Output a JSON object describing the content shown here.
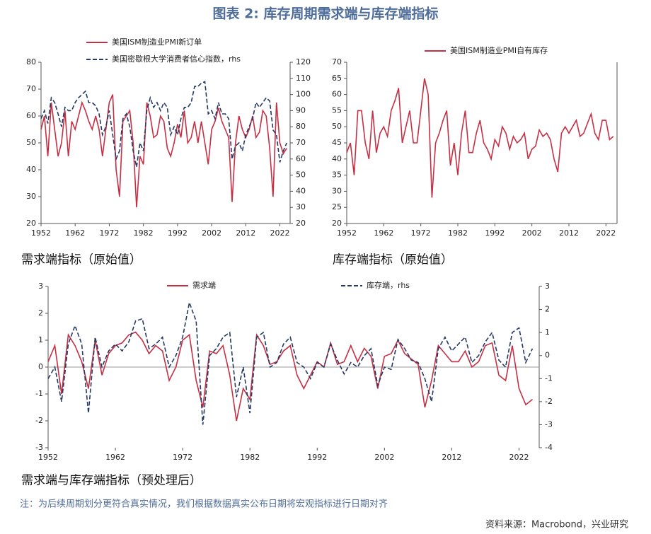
{
  "header": {
    "title": "图表 2:  库存周期需求端与库存端指标"
  },
  "chart_data": [
    {
      "type": "line",
      "title": "需求端指标（原始值）",
      "x": [
        1952,
        1953,
        1954,
        1955,
        1956,
        1957,
        1958,
        1959,
        1960,
        1961,
        1962,
        1963,
        1964,
        1965,
        1966,
        1967,
        1968,
        1969,
        1970,
        1971,
        1972,
        1973,
        1974,
        1975,
        1976,
        1977,
        1978,
        1979,
        1980,
        1981,
        1982,
        1983,
        1984,
        1985,
        1986,
        1987,
        1988,
        1989,
        1990,
        1991,
        1992,
        1993,
        1994,
        1995,
        1996,
        1997,
        1998,
        1999,
        2000,
        2001,
        2002,
        2003,
        2004,
        2005,
        2006,
        2007,
        2008,
        2009,
        2010,
        2011,
        2012,
        2013,
        2014,
        2015,
        2016,
        2017,
        2018,
        2019,
        2020,
        2021,
        2022,
        2023,
        2024
      ],
      "xlim": [
        1952,
        2025
      ],
      "xticks": [
        1952,
        1962,
        1972,
        1982,
        1992,
        2002,
        2012,
        2022
      ],
      "ylim": [
        20,
        80
      ],
      "yticks": [
        20,
        30,
        40,
        50,
        60,
        70,
        80
      ],
      "y2lim": [
        20,
        120
      ],
      "y2ticks": [
        20,
        30,
        40,
        50,
        60,
        70,
        80,
        90,
        100,
        110,
        120
      ],
      "legend": "upper left",
      "series": [
        {
          "name": "美国ISM制造业PMI新订单",
          "color": "#c62f44",
          "line_style": "solid",
          "values": [
            55,
            60,
            45,
            65,
            55,
            45,
            50,
            62,
            45,
            58,
            55,
            60,
            65,
            62,
            58,
            55,
            60,
            55,
            45,
            55,
            65,
            68,
            40,
            30,
            58,
            60,
            62,
            50,
            26,
            45,
            42,
            65,
            60,
            52,
            53,
            60,
            58,
            48,
            45,
            50,
            57,
            52,
            62,
            50,
            52,
            58,
            50,
            58,
            50,
            42,
            55,
            58,
            63,
            58,
            55,
            52,
            28,
            50,
            60,
            55,
            52,
            55,
            60,
            52,
            54,
            62,
            60,
            48,
            30,
            65,
            50,
            46,
            48
          ]
        },
        {
          "name": "美国密歇根大学消费者信心指数，rhs",
          "color": "#243a64",
          "line_style": "dashed",
          "axis": "y2",
          "values": [
            85,
            90,
            82,
            98,
            95,
            88,
            80,
            92,
            90,
            90,
            95,
            98,
            100,
            102,
            95,
            95,
            93,
            88,
            75,
            80,
            90,
            75,
            60,
            65,
            85,
            88,
            80,
            65,
            55,
            70,
            65,
            90,
            98,
            92,
            95,
            90,
            95,
            92,
            75,
            80,
            75,
            85,
            92,
            92,
            95,
            105,
            105,
            107,
            108,
            88,
            90,
            85,
            95,
            88,
            88,
            85,
            60,
            68,
            70,
            65,
            75,
            80,
            85,
            95,
            92,
            95,
            98,
            96,
            78,
            75,
            58,
            65,
            70
          ]
        }
      ]
    },
    {
      "type": "line",
      "title": "库存端指标（原始值）",
      "x": [
        1952,
        1953,
        1954,
        1955,
        1956,
        1957,
        1958,
        1959,
        1960,
        1961,
        1962,
        1963,
        1964,
        1965,
        1966,
        1967,
        1968,
        1969,
        1970,
        1971,
        1972,
        1973,
        1974,
        1975,
        1976,
        1977,
        1978,
        1979,
        1980,
        1981,
        1982,
        1983,
        1984,
        1985,
        1986,
        1987,
        1988,
        1989,
        1990,
        1991,
        1992,
        1993,
        1994,
        1995,
        1996,
        1997,
        1998,
        1999,
        2000,
        2001,
        2002,
        2003,
        2004,
        2005,
        2006,
        2007,
        2008,
        2009,
        2010,
        2011,
        2012,
        2013,
        2014,
        2015,
        2016,
        2017,
        2018,
        2019,
        2020,
        2021,
        2022,
        2023,
        2024
      ],
      "xlim": [
        1952,
        2025
      ],
      "xticks": [
        1952,
        1962,
        1972,
        1982,
        1992,
        2002,
        2012,
        2022
      ],
      "ylim": [
        20,
        70
      ],
      "yticks": [
        20,
        25,
        30,
        35,
        40,
        45,
        50,
        55,
        60,
        65,
        70
      ],
      "legend": "upper center",
      "series": [
        {
          "name": "美国ISM制造业PMI自有库存",
          "color": "#c62f44",
          "line_style": "solid",
          "values": [
            42,
            45,
            35,
            55,
            55,
            45,
            40,
            55,
            42,
            48,
            50,
            47,
            55,
            58,
            62,
            45,
            50,
            55,
            45,
            45,
            55,
            65,
            60,
            28,
            45,
            48,
            52,
            55,
            38,
            45,
            35,
            48,
            55,
            42,
            42,
            48,
            52,
            45,
            43,
            40,
            46,
            44,
            50,
            48,
            43,
            47,
            45,
            46,
            48,
            40,
            43,
            44,
            49,
            47,
            48,
            46,
            40,
            36,
            48,
            50,
            48,
            50,
            52,
            47,
            48,
            51,
            54,
            48,
            46,
            52,
            52,
            46,
            47
          ]
        }
      ]
    },
    {
      "type": "line",
      "title": "需求端与库存端指标（预处理后）",
      "x": [
        1952,
        1953,
        1954,
        1955,
        1956,
        1957,
        1958,
        1959,
        1960,
        1961,
        1962,
        1963,
        1964,
        1965,
        1966,
        1967,
        1968,
        1969,
        1970,
        1971,
        1972,
        1973,
        1974,
        1975,
        1976,
        1977,
        1978,
        1979,
        1980,
        1981,
        1982,
        1983,
        1984,
        1985,
        1986,
        1987,
        1988,
        1989,
        1990,
        1991,
        1992,
        1993,
        1994,
        1995,
        1996,
        1997,
        1998,
        1999,
        2000,
        2001,
        2002,
        2003,
        2004,
        2005,
        2006,
        2007,
        2008,
        2009,
        2010,
        2011,
        2012,
        2013,
        2014,
        2015,
        2016,
        2017,
        2018,
        2019,
        2020,
        2021,
        2022,
        2023,
        2024
      ],
      "xlim": [
        1952,
        2025
      ],
      "xticks": [
        1952,
        1962,
        1972,
        1982,
        1992,
        2002,
        2012,
        2022
      ],
      "ylim": [
        -3,
        3
      ],
      "yticks": [
        -3,
        -2,
        -1,
        0,
        1,
        2,
        3
      ],
      "y2lim": [
        -4,
        3
      ],
      "y2ticks": [
        -4,
        -3,
        -2,
        -1,
        0,
        1,
        2,
        3
      ],
      "zero_line": true,
      "legend": "top",
      "series": [
        {
          "name": "需求端",
          "color": "#c62f44",
          "line_style": "solid",
          "values": [
            0.2,
            0.8,
            -1,
            1.2,
            0.8,
            0.2,
            -0.8,
            1.0,
            -0.3,
            0.5,
            0.8,
            0.9,
            1.2,
            1.3,
            1.0,
            0.5,
            0.8,
            0.6,
            -0.5,
            0,
            1.0,
            1.2,
            -0.5,
            -1.5,
            0.6,
            0.5,
            0.8,
            -0.3,
            -2.0,
            -0.8,
            -1.2,
            1.2,
            0.8,
            0.1,
            0.2,
            0.6,
            0.8,
            -0.3,
            -0.8,
            -0.3,
            0.2,
            0,
            0.9,
            0.1,
            0.2,
            0.8,
            0.2,
            0.7,
            0.4,
            -0.8,
            0.4,
            0.5,
            1.0,
            0.5,
            0.3,
            0.1,
            -1.5,
            -0.5,
            0.8,
            0.5,
            0.2,
            0.2,
            0.6,
            0,
            0.2,
            0.8,
            0.9,
            -0.3,
            -0.5,
            0.8,
            -0.8,
            -1.4,
            -1.2
          ]
        },
        {
          "name": "库存端，rhs",
          "color": "#243a64",
          "line_style": "dashed",
          "axis": "y2",
          "values": [
            -1,
            -0.5,
            -2,
            0.5,
            1.3,
            0.5,
            -2.5,
            0.8,
            -0.5,
            0.2,
            0.5,
            0.2,
            0.6,
            1.5,
            1.6,
            0.3,
            0.5,
            0.8,
            -0.5,
            0,
            0.8,
            2.3,
            1.5,
            -3.0,
            0,
            0.3,
            0.8,
            1.0,
            -1.8,
            -0.5,
            -2.5,
            0.8,
            1.0,
            -0.5,
            -0.3,
            0.5,
            0.8,
            -0.3,
            -0.5,
            -1.0,
            -0.3,
            -0.5,
            0.5,
            -0.2,
            -0.8,
            -0.3,
            -0.5,
            0,
            0.3,
            -1.3,
            -0.5,
            -0.6,
            0.7,
            0.3,
            -0.2,
            -0.3,
            -1.0,
            -2.0,
            0.3,
            0.8,
            0.2,
            0.5,
            0.8,
            -0.3,
            0,
            0.6,
            1.0,
            -0.2,
            -0.5,
            1.0,
            1.2,
            -0.3,
            0.3
          ]
        }
      ]
    }
  ],
  "footer": {
    "note": "注：为后续周期划分更符合真实情况，我们根据数据真实公布日期将宏观指标进行日期对齐",
    "source": "资料来源：Macrobond，兴业研究"
  }
}
